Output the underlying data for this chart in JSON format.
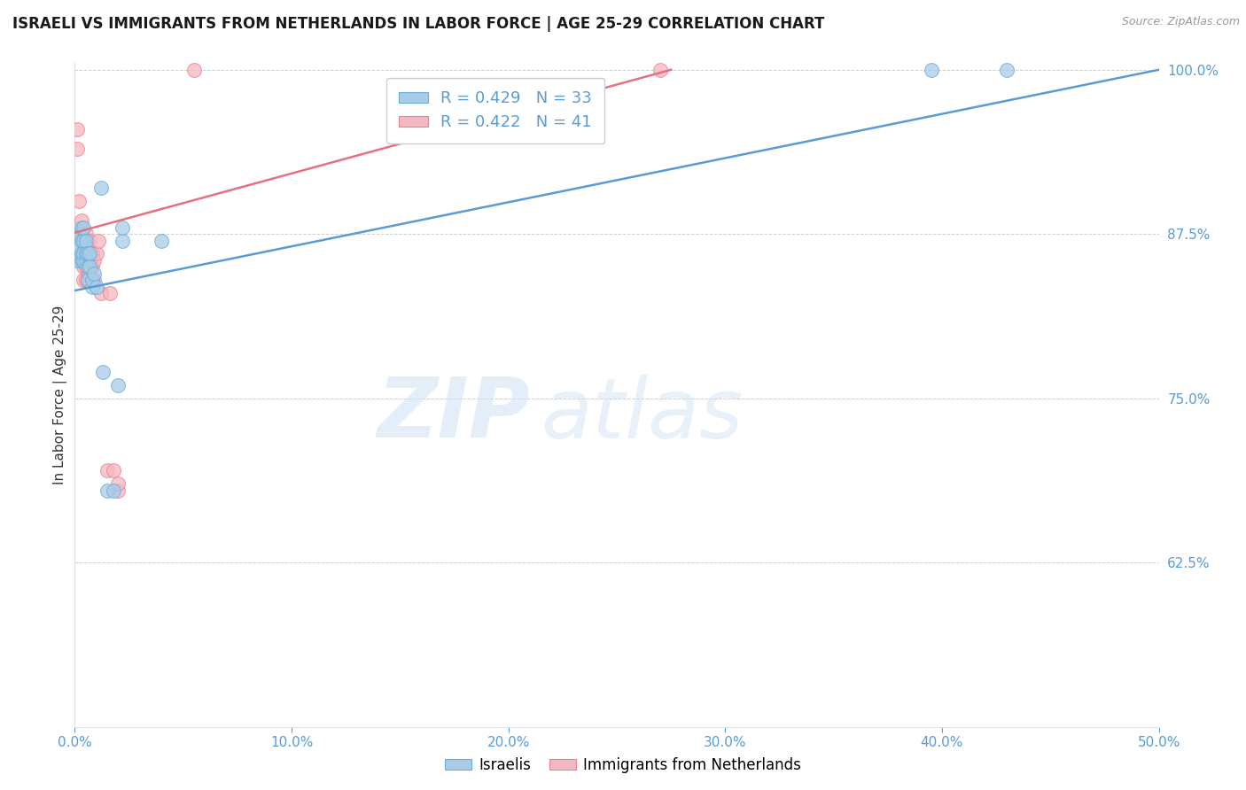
{
  "title": "ISRAELI VS IMMIGRANTS FROM NETHERLANDS IN LABOR FORCE | AGE 25-29 CORRELATION CHART",
  "source": "Source: ZipAtlas.com",
  "ylabel": "In Labor Force | Age 25-29",
  "xlim": [
    0.0,
    0.5
  ],
  "ylim": [
    0.5,
    1.005
  ],
  "yticks": [
    0.625,
    0.75,
    0.875,
    1.0
  ],
  "ytick_labels": [
    "62.5%",
    "75.0%",
    "87.5%",
    "100.0%"
  ],
  "xticks": [
    0.0,
    0.1,
    0.2,
    0.3,
    0.4,
    0.5
  ],
  "xtick_labels": [
    "0.0%",
    "10.0%",
    "20.0%",
    "30.0%",
    "40.0%",
    "50.0%"
  ],
  "blue_R": 0.429,
  "blue_N": 33,
  "pink_R": 0.422,
  "pink_N": 41,
  "blue_color": "#a8cce8",
  "pink_color": "#f5b8c0",
  "blue_edge_color": "#6aaed6",
  "pink_edge_color": "#f08090",
  "blue_line_color": "#5b9bd5",
  "pink_line_color": "#e8707e",
  "legend_blue_label": "R = 0.429   N = 33",
  "legend_pink_label": "R = 0.422   N = 41",
  "blue_trend_x": [
    0.0,
    0.5
  ],
  "blue_trend_y": [
    0.832,
    1.0
  ],
  "pink_trend_x": [
    0.0,
    0.275
  ],
  "pink_trend_y": [
    0.876,
    1.0
  ],
  "blue_x": [
    0.001,
    0.002,
    0.002,
    0.003,
    0.003,
    0.003,
    0.003,
    0.004,
    0.004,
    0.004,
    0.004,
    0.005,
    0.005,
    0.005,
    0.006,
    0.006,
    0.006,
    0.007,
    0.007,
    0.008,
    0.008,
    0.009,
    0.01,
    0.012,
    0.013,
    0.015,
    0.018,
    0.02,
    0.022,
    0.022,
    0.04,
    0.395,
    0.43
  ],
  "blue_y": [
    0.855,
    0.865,
    0.875,
    0.855,
    0.86,
    0.87,
    0.88,
    0.855,
    0.86,
    0.87,
    0.88,
    0.855,
    0.86,
    0.87,
    0.84,
    0.85,
    0.86,
    0.85,
    0.86,
    0.835,
    0.84,
    0.845,
    0.835,
    0.91,
    0.77,
    0.68,
    0.68,
    0.76,
    0.87,
    0.88,
    0.87,
    1.0,
    1.0
  ],
  "pink_x": [
    0.001,
    0.001,
    0.002,
    0.002,
    0.003,
    0.003,
    0.003,
    0.003,
    0.003,
    0.004,
    0.004,
    0.004,
    0.004,
    0.004,
    0.005,
    0.005,
    0.005,
    0.005,
    0.005,
    0.006,
    0.006,
    0.006,
    0.006,
    0.007,
    0.007,
    0.007,
    0.008,
    0.008,
    0.008,
    0.009,
    0.009,
    0.01,
    0.011,
    0.012,
    0.015,
    0.016,
    0.018,
    0.02,
    0.02,
    0.055,
    0.27
  ],
  "pink_y": [
    0.94,
    0.955,
    0.875,
    0.9,
    0.855,
    0.86,
    0.87,
    0.875,
    0.885,
    0.84,
    0.85,
    0.855,
    0.86,
    0.87,
    0.84,
    0.85,
    0.855,
    0.86,
    0.875,
    0.84,
    0.845,
    0.855,
    0.865,
    0.845,
    0.855,
    0.87,
    0.84,
    0.85,
    0.86,
    0.84,
    0.855,
    0.86,
    0.87,
    0.83,
    0.695,
    0.83,
    0.695,
    0.68,
    0.685,
    1.0,
    1.0
  ],
  "watermark_zip": "ZIP",
  "watermark_atlas": "atlas",
  "background_color": "#ffffff",
  "grid_color": "#d0d0d0",
  "tick_color": "#5b9bd5",
  "title_color": "#1a1a1a",
  "ylabel_color": "#333333",
  "source_color": "#999999"
}
